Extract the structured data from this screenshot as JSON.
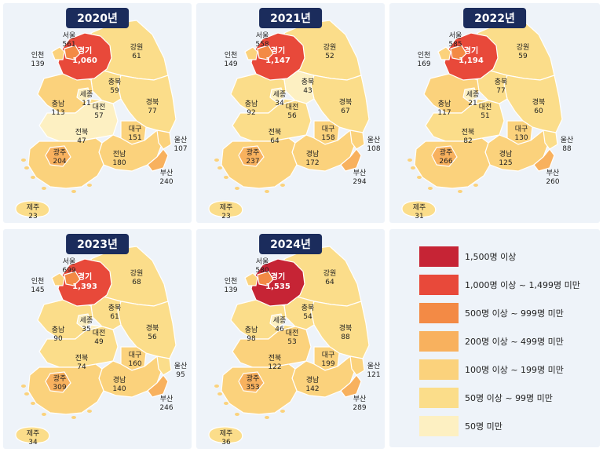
{
  "colors": {
    "c1500": "#c62435",
    "c1000": "#e8493a",
    "c500": "#f38a45",
    "c200": "#f8b15e",
    "c100": "#fbd27c",
    "c50": "#fbdd8a",
    "c0": "#fdf0c2"
  },
  "legend": [
    {
      "label": "1,500명 이상",
      "color": "#c62435"
    },
    {
      "label": "1,000명 이상 ~ 1,499명 미만",
      "color": "#e8493a"
    },
    {
      "label": "500명 이상 ~ 999명 미만",
      "color": "#f38a45"
    },
    {
      "label": "200명 이상 ~ 499명 미만",
      "color": "#f8b15e"
    },
    {
      "label": "100명 이상 ~ 199명 미만",
      "color": "#fbd27c"
    },
    {
      "label": "50명 이상 ~ 99명 미만",
      "color": "#fbdd8a"
    },
    {
      "label": "50명 미만",
      "color": "#fdf0c2"
    }
  ],
  "maps": [
    {
      "year": "2020년",
      "values": {
        "seoul": "561",
        "incheon": "139",
        "gyeonggi": "1,060",
        "gangwon": "61",
        "chungbuk": "59",
        "sejong": "11",
        "chungnam": "113",
        "daejeon": "57",
        "gyeongbuk": "77",
        "jeonbuk": "47",
        "daegu": "151",
        "ulsan": "107",
        "gwangju": "204",
        "jeonnam": "180",
        "gyeongnam": "",
        "busan": "240",
        "jeju": "23"
      }
    },
    {
      "year": "2021년",
      "values": {
        "seoul": "558",
        "incheon": "149",
        "gyeonggi": "1,147",
        "gangwon": "52",
        "chungbuk": "43",
        "sejong": "34",
        "chungnam": "92",
        "daejeon": "56",
        "gyeongbuk": "67",
        "jeonbuk": "64",
        "daegu": "158",
        "ulsan": "108",
        "gwangju": "237",
        "jeonnam": "",
        "gyeongnam": "172",
        "busan": "294",
        "jeju": "23"
      }
    },
    {
      "year": "2022년",
      "values": {
        "seoul": "585",
        "incheon": "169",
        "gyeonggi": "1,194",
        "gangwon": "59",
        "chungbuk": "77",
        "sejong": "21",
        "chungnam": "117",
        "daejeon": "51",
        "gyeongbuk": "60",
        "jeonbuk": "82",
        "daegu": "130",
        "ulsan": "88",
        "gwangju": "266",
        "jeonnam": "",
        "gyeongnam": "125",
        "busan": "260",
        "jeju": "31"
      }
    },
    {
      "year": "2023년",
      "values": {
        "seoul": "699",
        "incheon": "145",
        "gyeonggi": "1,393",
        "gangwon": "68",
        "chungbuk": "61",
        "sejong": "35",
        "chungnam": "90",
        "daejeon": "49",
        "gyeongbuk": "56",
        "jeonbuk": "74",
        "daegu": "160",
        "ulsan": "95",
        "gwangju": "309",
        "jeonnam": "",
        "gyeongnam": "140",
        "busan": "246",
        "jeju": "34"
      }
    },
    {
      "year": "2024년",
      "values": {
        "seoul": "580",
        "incheon": "139",
        "gyeonggi": "1,535",
        "gangwon": "64",
        "chungbuk": "54",
        "sejong": "46",
        "chungnam": "98",
        "daejeon": "53",
        "gyeongbuk": "88",
        "jeonbuk": "122",
        "daegu": "199",
        "ulsan": "121",
        "gwangju": "353",
        "jeonnam": "",
        "gyeongnam": "142",
        "busan": "289",
        "jeju": "36"
      }
    }
  ],
  "names": {
    "seoul": "서울",
    "incheon": "인천",
    "gyeonggi": "경기",
    "gangwon": "강원",
    "chungbuk": "충북",
    "sejong": "세종",
    "chungnam": "충남",
    "daejeon": "대전",
    "gyeongbuk": "경북",
    "jeonbuk": "전북",
    "daegu": "대구",
    "ulsan": "울산",
    "gwangju": "광주",
    "jeonnam": "전남",
    "gyeongnam": "경남",
    "busan": "부산",
    "jeju": "제주"
  }
}
